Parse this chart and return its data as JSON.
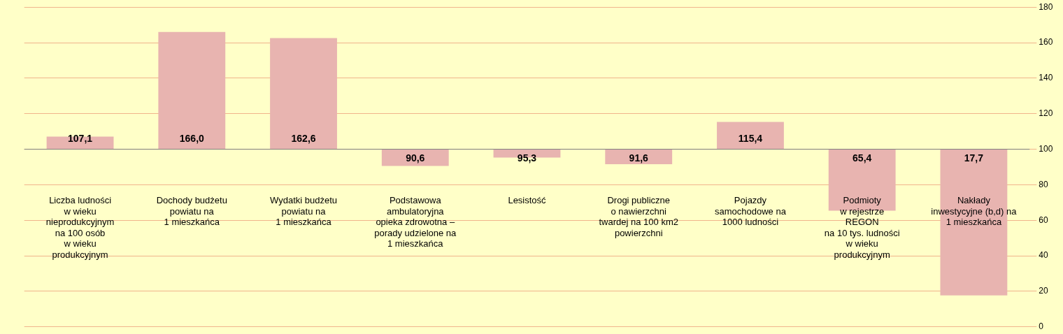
{
  "chart_data": {
    "type": "bar",
    "categories": [
      "Liczba ludności\nw wieku\nnieprodukcyjnym\nna 100 osób\nw wieku\nprodukcyjnym",
      "Dochody budżetu\npowiatu na\n1 mieszkańca",
      "Wydatki budżetu\npowiatu na\n1 mieszkańca",
      "Podstawowa\nambulatoryjna\nopieka zdrowotna –\nporady udzielone na\n1 mieszkańca",
      "Lesistość",
      "Drogi publiczne\no nawierzchni\ntwardej na 100 km2\npowierzchni",
      "Pojazdy\nsamochodowe na\n1000 ludności",
      "Podmioty\nw rejestrze\nREGON\nna 10 tys. ludności\nw wieku\nprodukcyjnym",
      "Nakłady\ninwestycyjne (b,d) na\n1 mieszkańca"
    ],
    "base": [
      100,
      100,
      100,
      100,
      100,
      100,
      100,
      100,
      100
    ],
    "values": [
      7.1,
      66.0,
      62.6,
      -9.4,
      -4.7,
      -8.4,
      15.4,
      -34.6,
      -82.3
    ],
    "value_labels": [
      "107,1",
      "166,0",
      "162,6",
      "90,6",
      "95,3",
      "91,6",
      "115,4",
      "65,4",
      "17,7"
    ],
    "color": "#e8b4b0",
    "ylim": [
      0,
      180
    ],
    "yticks": [
      0,
      20,
      40,
      60,
      80,
      100,
      120,
      140,
      160,
      180
    ],
    "ref_lines": [
      {
        "axis": "y",
        "value": 100,
        "color": "#808080"
      }
    ],
    "grid": "y"
  }
}
